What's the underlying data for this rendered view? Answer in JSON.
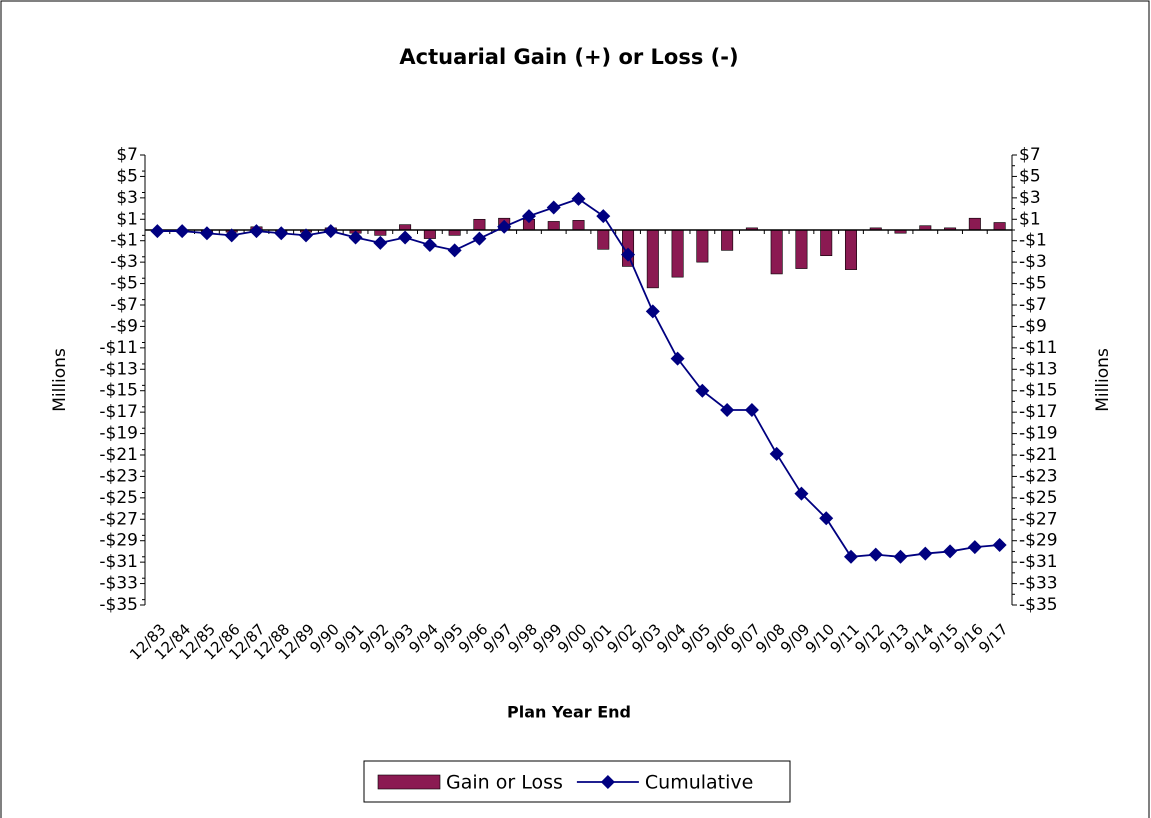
{
  "chart_data": {
    "type": "bar-line",
    "title": "Actuarial Gain (+) or Loss (-)",
    "x_label": "Plan Year End",
    "y_label": "Millions",
    "y2_label": "Millions",
    "categories": [
      "12/83",
      "12/84",
      "12/85",
      "12/86",
      "12/87",
      "12/88",
      "12/89",
      "9/90",
      "9/91",
      "9/92",
      "9/93",
      "9/94",
      "9/95",
      "9/96",
      "9/97",
      "9/98",
      "9/99",
      "9/00",
      "9/01",
      "9/02",
      "9/03",
      "9/04",
      "9/05",
      "9/06",
      "9/07",
      "9/08",
      "9/09",
      "9/10",
      "9/11",
      "9/12",
      "9/13",
      "9/14",
      "9/15",
      "9/16",
      "9/17"
    ],
    "series": [
      {
        "name": "Gain or Loss",
        "type": "bar",
        "color": "#8b1a52",
        "values": [
          0,
          0,
          -0.2,
          -0.2,
          0.3,
          -0.2,
          -0.2,
          0.2,
          -0.3,
          -0.5,
          0.5,
          -0.8,
          -0.5,
          1.0,
          1.1,
          1.0,
          0.8,
          0.9,
          -1.8,
          -3.4,
          -5.4,
          -4.4,
          -3.0,
          -1.9,
          0.2,
          -4.1,
          -3.6,
          -2.4,
          -3.7,
          0.2,
          -0.3,
          0.4,
          0.2,
          1.1,
          0.7
        ]
      },
      {
        "name": "Cumulative",
        "type": "line",
        "axis": "y2",
        "color": "#000080",
        "values": [
          -0.1,
          -0.1,
          -0.3,
          -0.5,
          -0.1,
          -0.3,
          -0.5,
          -0.1,
          -0.7,
          -1.2,
          -0.7,
          -1.4,
          -1.9,
          -0.8,
          0.3,
          1.3,
          2.1,
          2.9,
          1.3,
          -2.3,
          -7.6,
          -12,
          -15,
          -16.8,
          -16.8,
          -20.9,
          -24.6,
          -26.9,
          -30.5,
          -30.3,
          -30.5,
          -30.2,
          -30.0,
          -29.6,
          -29.4
        ]
      }
    ],
    "ylim": [
      -35,
      7
    ],
    "yticks": [
      {
        "value": -35,
        "label": "-$35"
      },
      {
        "value": -33,
        "label": "-$33"
      },
      {
        "value": -31,
        "label": "-$31"
      },
      {
        "value": -29,
        "label": "-$29"
      },
      {
        "value": -27,
        "label": "-$27"
      },
      {
        "value": -25,
        "label": "-$25"
      },
      {
        "value": -23,
        "label": "-$23"
      },
      {
        "value": -21,
        "label": "-$21"
      },
      {
        "value": -19,
        "label": "-$19"
      },
      {
        "value": -17,
        "label": "-$17"
      },
      {
        "value": -15,
        "label": "-$15"
      },
      {
        "value": -13,
        "label": "-$13"
      },
      {
        "value": -11,
        "label": "-$11"
      },
      {
        "value": -9,
        "label": "-$9"
      },
      {
        "value": -7,
        "label": "-$7"
      },
      {
        "value": -5,
        "label": "-$5"
      },
      {
        "value": -3,
        "label": "-$3"
      },
      {
        "value": -1,
        "label": "-$1"
      },
      {
        "value": 1,
        "label": "$1"
      },
      {
        "value": 3,
        "label": "$3"
      },
      {
        "value": 5,
        "label": "$5"
      },
      {
        "value": 7,
        "label": "$7"
      }
    ],
    "y2lim": [
      -35,
      7
    ],
    "y2ticks": [
      {
        "value": -35,
        "label": "-$35"
      },
      {
        "value": -33,
        "label": "-$33"
      },
      {
        "value": -31,
        "label": "-$31"
      },
      {
        "value": -29,
        "label": "-$29"
      },
      {
        "value": -27,
        "label": "-$27"
      },
      {
        "value": -25,
        "label": "-$25"
      },
      {
        "value": -23,
        "label": "-$23"
      },
      {
        "value": -21,
        "label": "-$21"
      },
      {
        "value": -19,
        "label": "-$19"
      },
      {
        "value": -17,
        "label": "-$17"
      },
      {
        "value": -15,
        "label": "-$15"
      },
      {
        "value": -13,
        "label": "-$13"
      },
      {
        "value": -11,
        "label": "-$11"
      },
      {
        "value": -9,
        "label": "-$9"
      },
      {
        "value": -7,
        "label": "-$7"
      },
      {
        "value": -5,
        "label": "-$5"
      },
      {
        "value": -3,
        "label": "-$3"
      },
      {
        "value": -1,
        "label": "-$1"
      },
      {
        "value": 1,
        "label": "$1"
      },
      {
        "value": 3,
        "label": "$3"
      },
      {
        "value": 5,
        "label": "$5"
      },
      {
        "value": 7,
        "label": "$7"
      }
    ],
    "grid": false,
    "legend": "bottom"
  }
}
